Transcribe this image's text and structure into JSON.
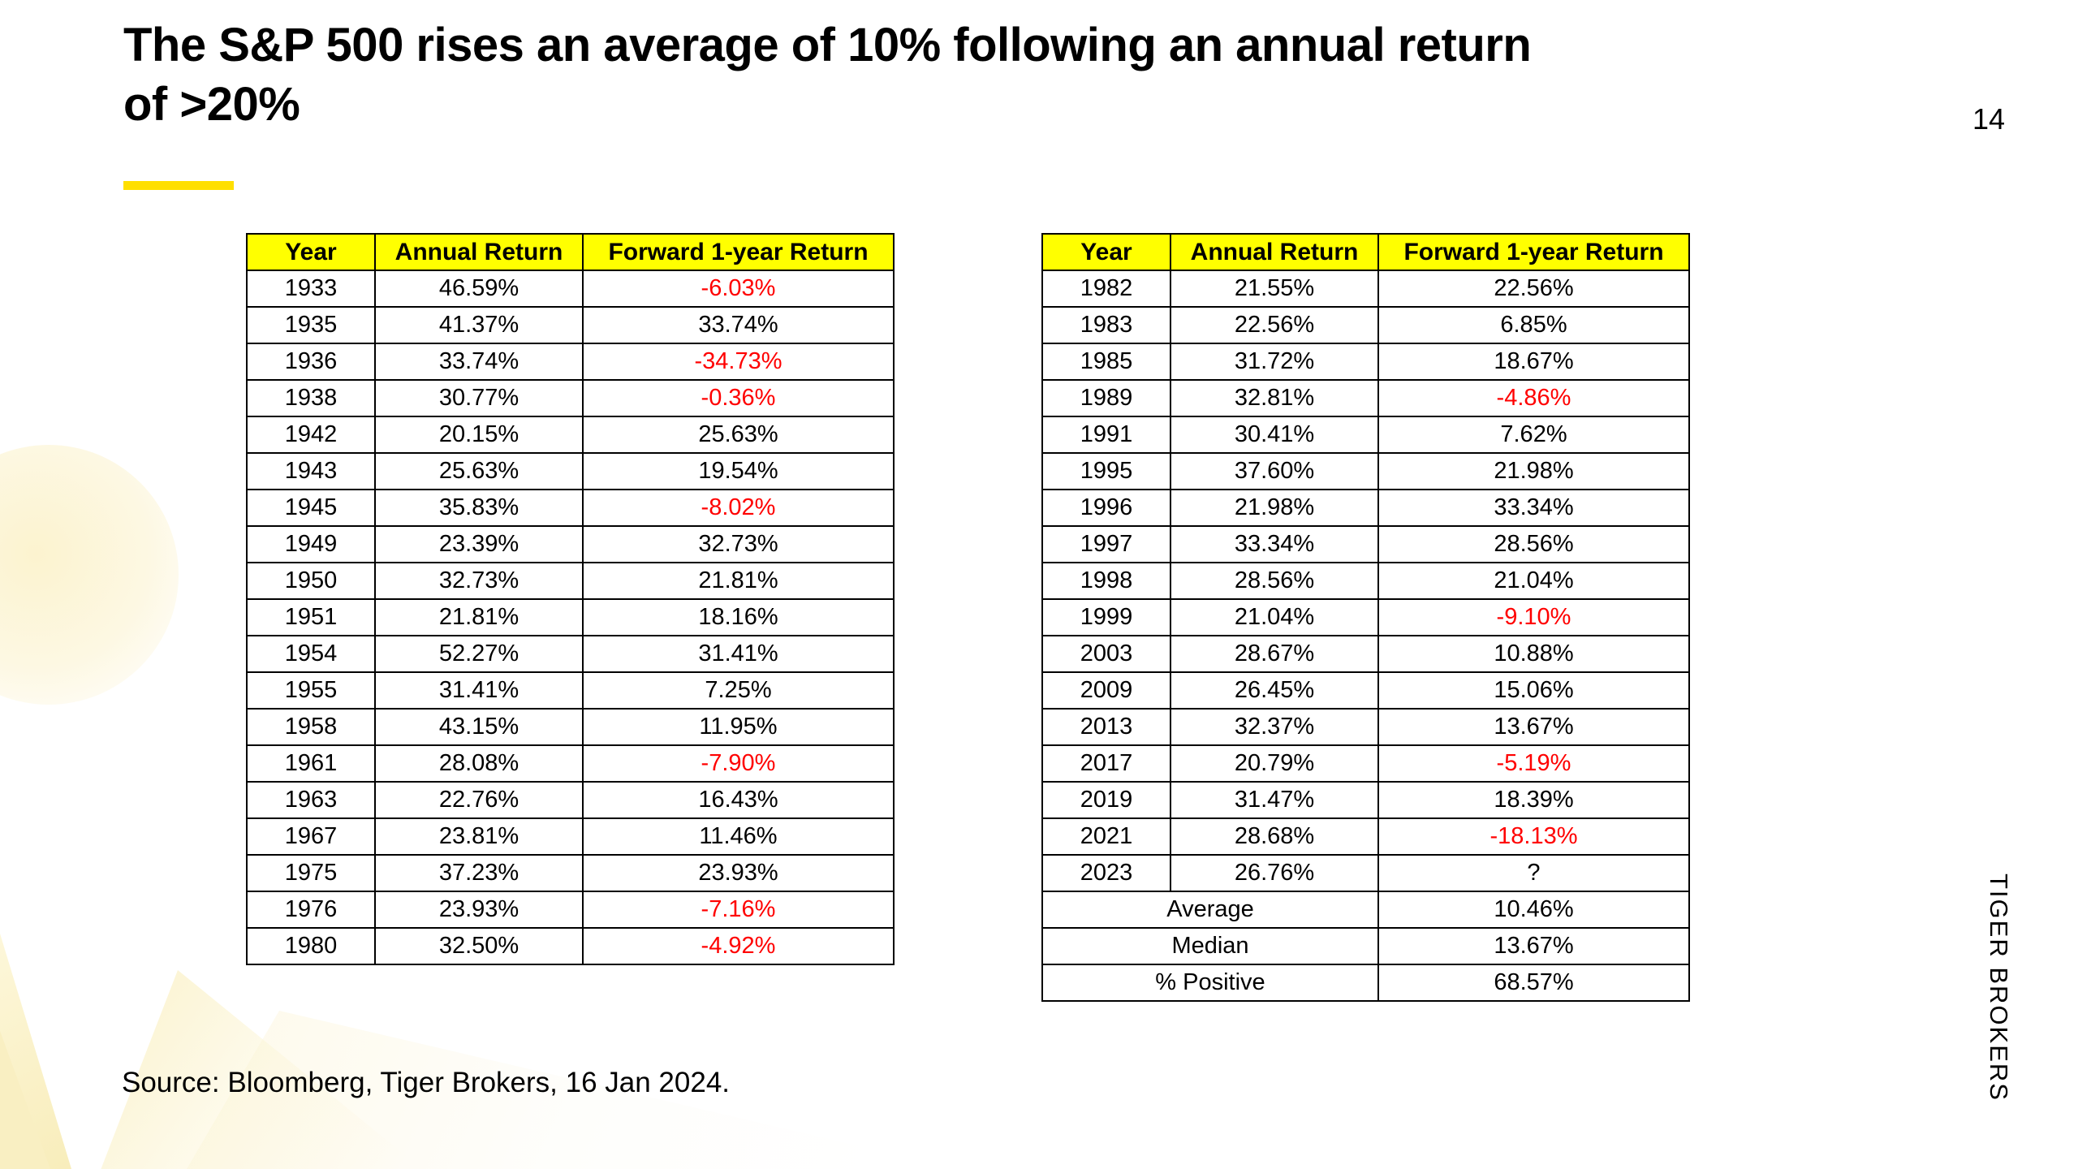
{
  "page": {
    "number": "14"
  },
  "title": {
    "lines": [
      "The S&P 500 rises an average of 10% following an annual return",
      "of >20%"
    ]
  },
  "colors": {
    "header_bg": "#FFFF00",
    "negative": "#FF0000",
    "accent_underline": "#FFDF00"
  },
  "tables": {
    "headers": [
      "Year",
      "Annual Return",
      "Forward 1-year Return"
    ],
    "left": {
      "rows": [
        [
          "1933",
          "46.59%",
          "-6.03%"
        ],
        [
          "1935",
          "41.37%",
          "33.74%"
        ],
        [
          "1936",
          "33.74%",
          "-34.73%"
        ],
        [
          "1938",
          "30.77%",
          "-0.36%"
        ],
        [
          "1942",
          "20.15%",
          "25.63%"
        ],
        [
          "1943",
          "25.63%",
          "19.54%"
        ],
        [
          "1945",
          "35.83%",
          "-8.02%"
        ],
        [
          "1949",
          "23.39%",
          "32.73%"
        ],
        [
          "1950",
          "32.73%",
          "21.81%"
        ],
        [
          "1951",
          "21.81%",
          "18.16%"
        ],
        [
          "1954",
          "52.27%",
          "31.41%"
        ],
        [
          "1955",
          "31.41%",
          "7.25%"
        ],
        [
          "1958",
          "43.15%",
          "11.95%"
        ],
        [
          "1961",
          "28.08%",
          "-7.90%"
        ],
        [
          "1963",
          "22.76%",
          "16.43%"
        ],
        [
          "1967",
          "23.81%",
          "11.46%"
        ],
        [
          "1975",
          "37.23%",
          "23.93%"
        ],
        [
          "1976",
          "23.93%",
          "-7.16%"
        ],
        [
          "1980",
          "32.50%",
          "-4.92%"
        ]
      ]
    },
    "right": {
      "rows": [
        [
          "1982",
          "21.55%",
          "22.56%"
        ],
        [
          "1983",
          "22.56%",
          "6.85%"
        ],
        [
          "1985",
          "31.72%",
          "18.67%"
        ],
        [
          "1989",
          "32.81%",
          "-4.86%"
        ],
        [
          "1991",
          "30.41%",
          "7.62%"
        ],
        [
          "1995",
          "37.60%",
          "21.98%"
        ],
        [
          "1996",
          "21.98%",
          "33.34%"
        ],
        [
          "1997",
          "33.34%",
          "28.56%"
        ],
        [
          "1998",
          "28.56%",
          "21.04%"
        ],
        [
          "1999",
          "21.04%",
          "-9.10%"
        ],
        [
          "2003",
          "28.67%",
          "10.88%"
        ],
        [
          "2009",
          "26.45%",
          "15.06%"
        ],
        [
          "2013",
          "32.37%",
          "13.67%"
        ],
        [
          "2017",
          "20.79%",
          "-5.19%"
        ],
        [
          "2019",
          "31.47%",
          "18.39%"
        ],
        [
          "2021",
          "28.68%",
          "-18.13%"
        ],
        [
          "2023",
          "26.76%",
          "?"
        ]
      ],
      "summary": [
        [
          "Average",
          "10.46%"
        ],
        [
          "Median",
          "13.67%"
        ],
        [
          "% Positive",
          "68.57%"
        ]
      ]
    }
  },
  "source_note": "Source: Bloomberg, Tiger Brokers, 16 Jan 2024.",
  "brand": "TIGER BROKERS"
}
